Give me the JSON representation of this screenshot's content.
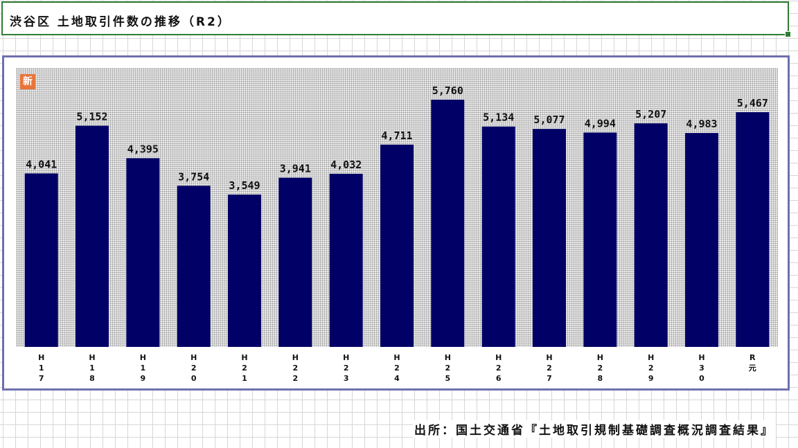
{
  "title": "渋谷区 土地取引件数の推移（R2）",
  "badge_label": "新",
  "source": "出所：国土交通省『土地取引規制基礎調査概況調査結果』",
  "colors": {
    "bar": "#000066",
    "frame": "#6f6fae",
    "title_border": "#2e7d32",
    "badge": "#e8743b"
  },
  "chart_data": {
    "type": "bar",
    "categories": [
      "H17",
      "H18",
      "H19",
      "H20",
      "H21",
      "H22",
      "H23",
      "H24",
      "H25",
      "H26",
      "H27",
      "H28",
      "H29",
      "H30",
      "R元"
    ],
    "category_lines": [
      [
        "H",
        "1",
        "7"
      ],
      [
        "H",
        "1",
        "8"
      ],
      [
        "H",
        "1",
        "9"
      ],
      [
        "H",
        "2",
        "0"
      ],
      [
        "H",
        "2",
        "1"
      ],
      [
        "H",
        "2",
        "2"
      ],
      [
        "H",
        "2",
        "3"
      ],
      [
        "H",
        "2",
        "4"
      ],
      [
        "H",
        "2",
        "5"
      ],
      [
        "H",
        "2",
        "6"
      ],
      [
        "H",
        "2",
        "7"
      ],
      [
        "H",
        "2",
        "8"
      ],
      [
        "H",
        "2",
        "9"
      ],
      [
        "H",
        "3",
        "0"
      ],
      [
        "R",
        "元"
      ]
    ],
    "values": [
      4041,
      5152,
      4395,
      3754,
      3549,
      3941,
      4032,
      4711,
      5760,
      5134,
      5077,
      4994,
      5207,
      4983,
      5467
    ],
    "value_labels": [
      "4,041",
      "5,152",
      "4,395",
      "3,754",
      "3,549",
      "3,941",
      "4,032",
      "4,711",
      "5,760",
      "5,134",
      "5,077",
      "4,994",
      "5,207",
      "4,983",
      "5,467"
    ],
    "title": "",
    "xlabel": "",
    "ylabel": "",
    "ylim": [
      0,
      6500
    ],
    "grid": false,
    "legend": "none"
  }
}
